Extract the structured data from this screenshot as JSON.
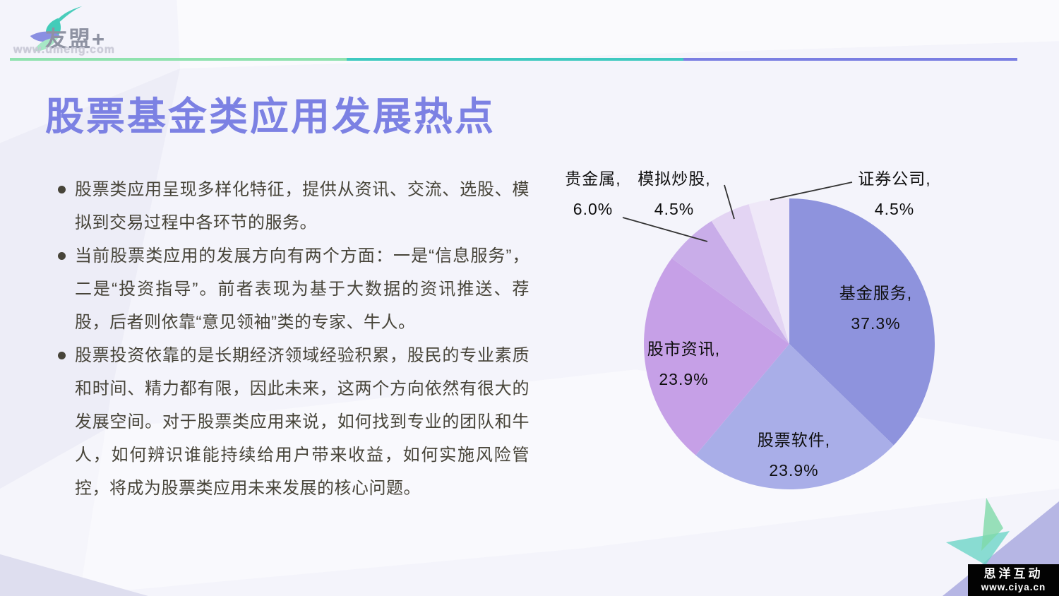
{
  "brand": {
    "name": "友盟+",
    "url": "www.umeng.com"
  },
  "colors": {
    "title": "#7c81e3",
    "body_text": "#474439",
    "rule_segments": [
      "#90e2af",
      "#3fc9c0",
      "#7a7ee2"
    ],
    "leader_line": "#333333",
    "background": "#f4f4fb",
    "watermark_bg": "#030303"
  },
  "title": "股票基金类应用发展热点",
  "bullets": [
    "股票类应用呈现多样化特征，提供从资讯、交流、选股、模拟到交易过程中各环节的服务。",
    "当前股票类应用的发展方向有两个方面：一是“信息服务”，二是“投资指导”。前者表现为基于大数据的资讯推送、荐股，后者则依靠“意见领袖”类的专家、牛人。",
    "股票投资依靠的是长期经济领域经验积累，股民的专业素质和时间、精力都有限，因此未来，这两个方向依然有很大的发展空间。对于股票类应用来说，如何找到专业的团队和牛人，如何辨识谁能持续给用户带来收益，如何实施风险管控，将成为股票类应用未来发展的核心问题。"
  ],
  "chart_data": {
    "type": "pie",
    "direction": "clockwise",
    "start_angle_deg": 0,
    "legend_position": "none",
    "labels": [
      "基金服务",
      "股票软件",
      "股市资讯",
      "贵金属",
      "模拟炒股",
      "证券公司"
    ],
    "values": [
      37.3,
      23.9,
      23.9,
      6.0,
      4.5,
      4.5
    ],
    "slices": [
      {
        "name": "基金服务",
        "pct": 37.3,
        "display_name": "基金服务,",
        "display_value": "37.3%",
        "color": "#8e93dd",
        "label_position": "inside"
      },
      {
        "name": "股票软件",
        "pct": 23.9,
        "display_name": "股票软件,",
        "display_value": "23.9%",
        "color": "#a9aee8",
        "label_position": "inside"
      },
      {
        "name": "股市资讯",
        "pct": 23.9,
        "display_name": "股市资讯,",
        "display_value": "23.9%",
        "color": "#c6a0e7",
        "label_position": "inside"
      },
      {
        "name": "贵金属",
        "pct": 6.0,
        "display_name": "贵金属,",
        "display_value": "6.0%",
        "color": "#c9ade9",
        "label_position": "outside"
      },
      {
        "name": "模拟炒股",
        "pct": 4.5,
        "display_name": "模拟炒股,",
        "display_value": "4.5%",
        "color": "#e3d4f3",
        "label_position": "outside"
      },
      {
        "name": "证券公司",
        "pct": 4.5,
        "display_name": "证券公司,",
        "display_value": "4.5%",
        "color": "#efe8f8",
        "label_position": "outside"
      }
    ]
  },
  "watermark": {
    "line1": "思洋互动",
    "line2": "www.ciya.cn"
  }
}
